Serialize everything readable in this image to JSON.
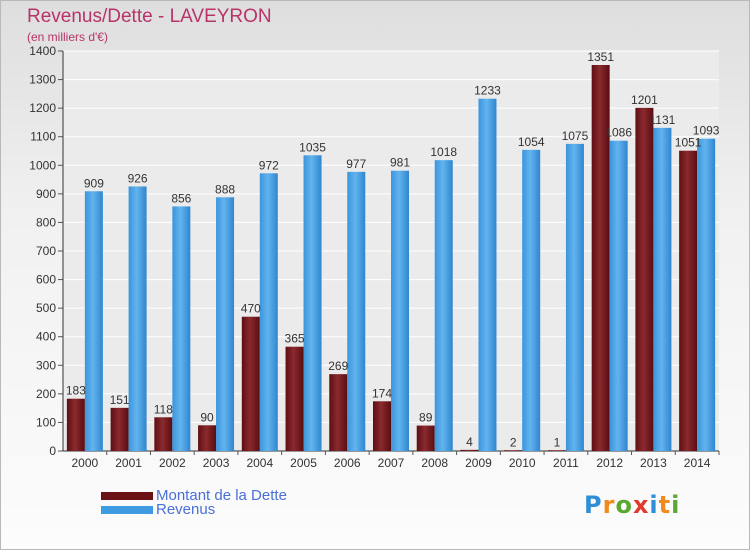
{
  "header": {
    "title": "Revenus/Dette - LAVEYRON",
    "subtitle": "(en milliers d'€)"
  },
  "colors": {
    "dette": "#7a1e22",
    "revenus": "#4aa3e6",
    "title": "#b8336a",
    "legend_text": "#4a6fd6"
  },
  "legend": [
    {
      "label": "Montant de la Dette",
      "color": "#6b1014"
    },
    {
      "label": "Revenus",
      "color": "#3f9be2"
    }
  ],
  "logo": {
    "text": "Proxiti",
    "letter_colors": [
      "#2f8fd6",
      "#f08a1c",
      "#5aa832",
      "#e03a2c",
      "#2f8fd6",
      "#f08a1c",
      "#5aa832"
    ]
  },
  "chart_data": {
    "type": "bar",
    "title": "Revenus/Dette - LAVEYRON",
    "ylabel": "(en milliers d'€)",
    "ylim": [
      0,
      1400
    ],
    "yticks": [
      0,
      100,
      200,
      300,
      400,
      500,
      600,
      700,
      800,
      900,
      1000,
      1100,
      1200,
      1300,
      1400
    ],
    "grid": true,
    "legend_position": "bottom-left",
    "categories": [
      "2000",
      "2001",
      "2002",
      "2003",
      "2004",
      "2005",
      "2006",
      "2007",
      "2008",
      "2009",
      "2010",
      "2011",
      "2012",
      "2013",
      "2014"
    ],
    "series": [
      {
        "name": "Montant de la Dette",
        "values": [
          183,
          151,
          118,
          90,
          470,
          365,
          269,
          174,
          89,
          4,
          2,
          1,
          1351,
          1201,
          1051
        ],
        "labels": [
          "183",
          "151",
          "118",
          "90",
          "470",
          "365",
          "269",
          "174",
          "89",
          "4",
          "2",
          "1",
          "1351",
          "1201",
          "1051"
        ]
      },
      {
        "name": "Revenus",
        "values": [
          909,
          926,
          856,
          888,
          972,
          1035,
          977,
          981,
          1018,
          1233,
          1054,
          1075,
          1086,
          1131,
          1093
        ],
        "labels": [
          "909",
          "926",
          "856",
          "888",
          "972",
          "1035",
          "977",
          "981",
          "1018",
          "1233",
          "1054",
          "1075",
          "1086",
          "1131",
          "1093"
        ]
      }
    ]
  }
}
